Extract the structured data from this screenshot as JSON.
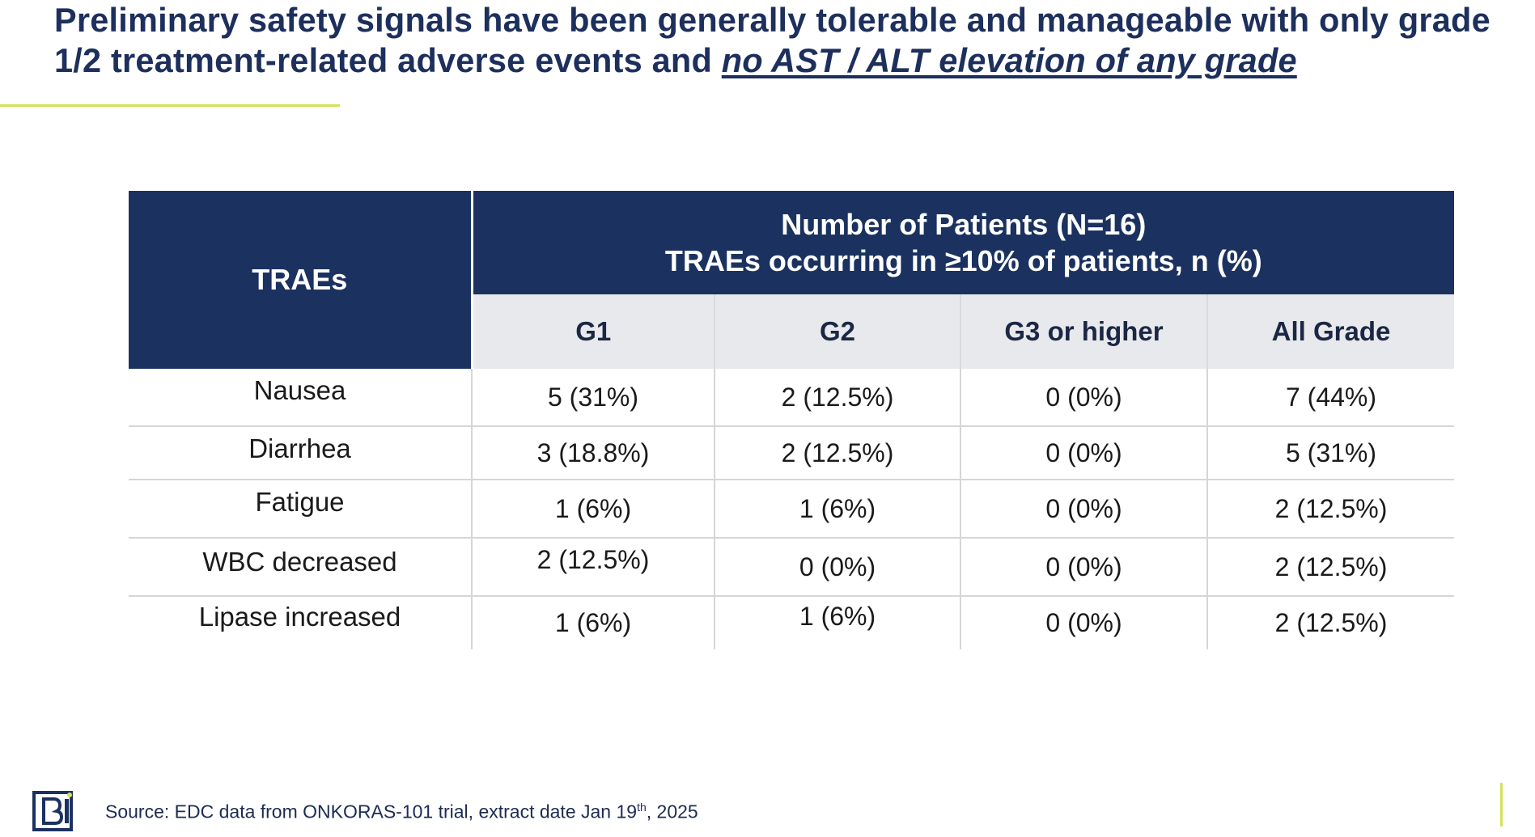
{
  "title": {
    "part1": "Preliminary safety signals have been generally tolerable and manageable with only grade 1/2 treatment-related adverse events and ",
    "emphasis": "no AST / ALT elevation of any grade"
  },
  "table": {
    "row_header": "TRAEs",
    "group_header_line1": "Number of Patients (N=16)",
    "group_header_line2": "TRAEs occurring in ≥10% of patients, n (%)",
    "columns": [
      "G1",
      "G2",
      "G3 or higher",
      "All Grade"
    ],
    "rows": [
      {
        "label": "Nausea",
        "values": [
          "5 (31%)",
          "2 (12.5%)",
          "0 (0%)",
          "7 (44%)"
        ]
      },
      {
        "label": "Diarrhea",
        "values": [
          "3 (18.8%)",
          "2 (12.5%)",
          "0 (0%)",
          "5 (31%)"
        ]
      },
      {
        "label": "Fatigue",
        "values": [
          "1 (6%)",
          "1 (6%)",
          "0 (0%)",
          "2 (12.5%)"
        ]
      },
      {
        "label": "WBC decreased",
        "values": [
          "2 (12.5%)",
          "0 (0%)",
          "0 (0%)",
          "2 (12.5%)"
        ]
      },
      {
        "label": "Lipase increased",
        "values": [
          "1 (6%)",
          "1 (6%)",
          "0 (0%)",
          "2 (12.5%)"
        ]
      }
    ]
  },
  "footer": {
    "source_prefix": "Source: EDC data from ONKORAS-101 trial, extract date Jan 19",
    "source_sup": "th",
    "source_suffix": ", 2025",
    "logo_icon": "company-logo-icon"
  },
  "colors": {
    "navy": "#1b3260",
    "accent": "#d4e157",
    "header_gray": "#e8e9ec"
  }
}
